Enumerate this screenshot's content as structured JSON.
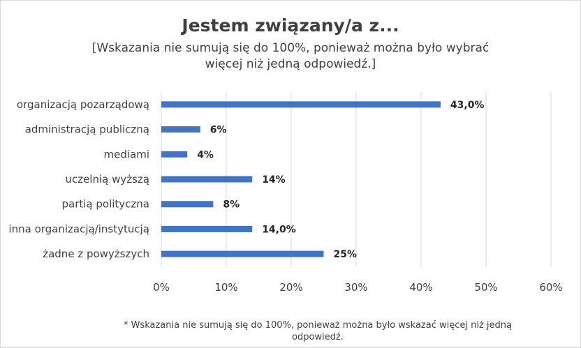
{
  "chart_data": {
    "type": "bar",
    "orientation": "horizontal",
    "title": "Jestem związany/a z...",
    "subtitle": "[Wskazania nie sumują się do 100%, ponieważ można było wybrać więcej niż jedną odpowiedź.]",
    "footnote": "* Wskazania nie sumują się do 100%, ponieważ można było wskazać więcej niż jedną odpowiedź.",
    "categories": [
      "organizacją pozarządową",
      "administracją publiczną",
      "mediami",
      "uczelnią wyższą",
      "partią polityczna",
      "inna organizacją/instytucją",
      "żadne z powyższych"
    ],
    "values": [
      43.0,
      6,
      4,
      14,
      8,
      14.0,
      25
    ],
    "data_labels": [
      "43,0%",
      "6%",
      "4%",
      "14%",
      "8%",
      "14,0%",
      "25%"
    ],
    "x_ticks": [
      "0%",
      "10%",
      "20%",
      "30%",
      "40%",
      "50%",
      "60%"
    ],
    "xlim": [
      0,
      60
    ],
    "grid": "vertical",
    "legend": "none",
    "bar_color": "#4472c4"
  }
}
